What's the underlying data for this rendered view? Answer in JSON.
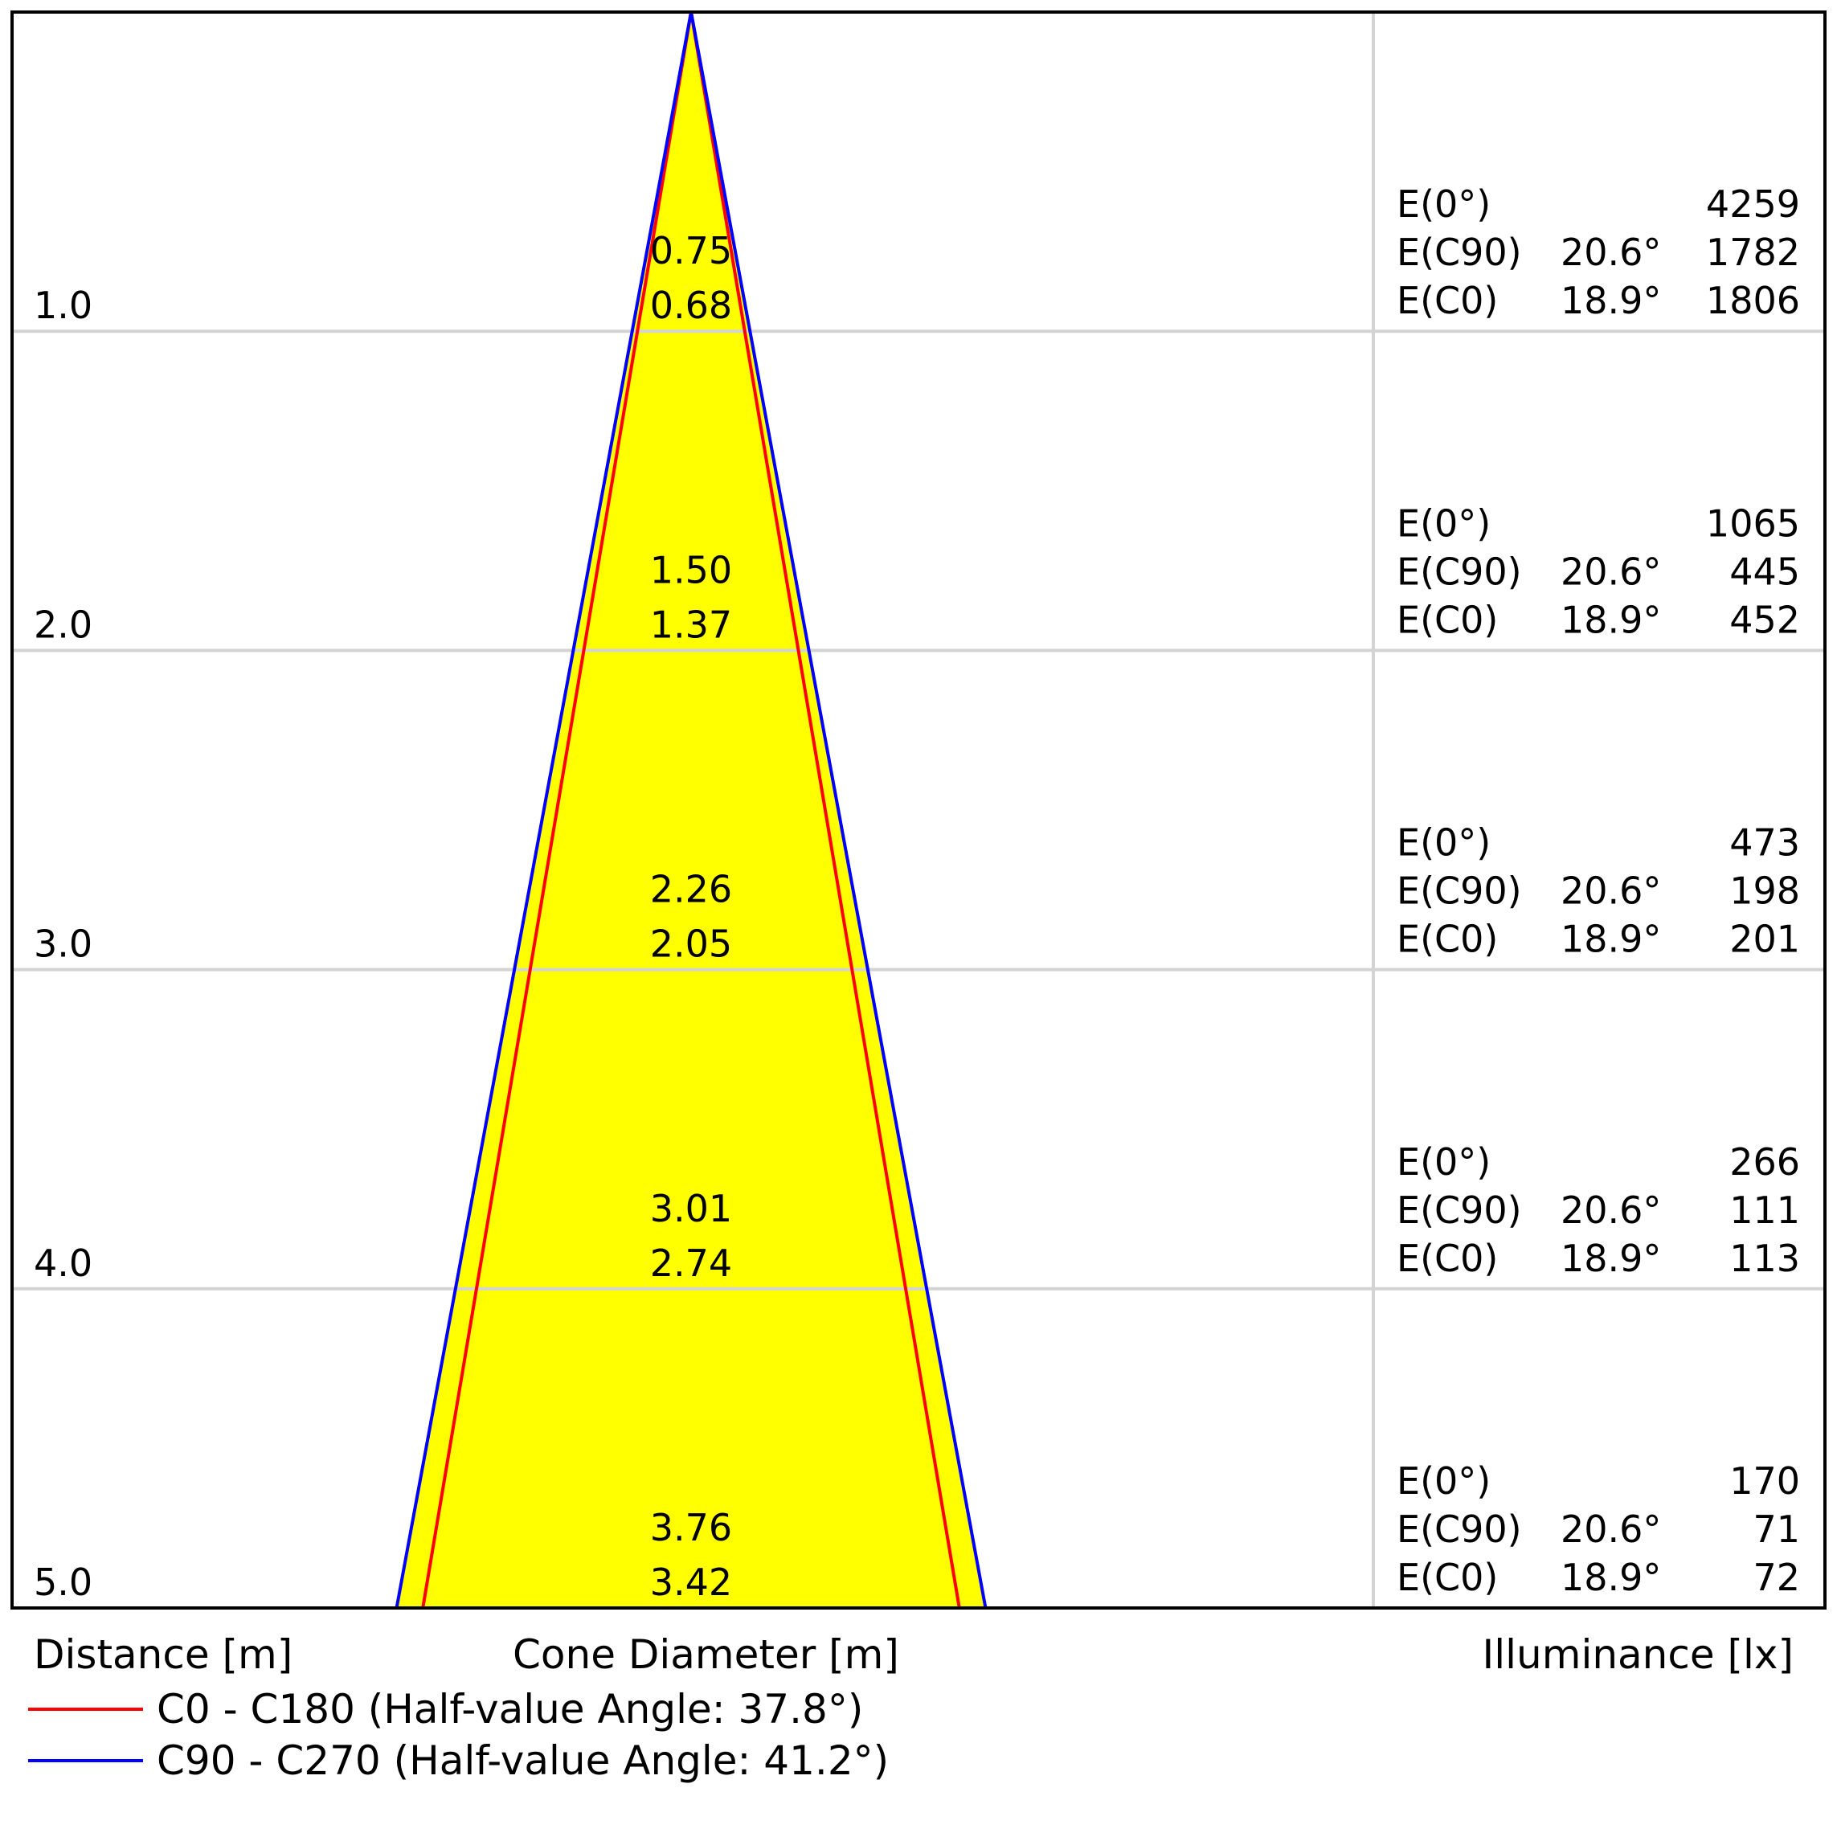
{
  "chart_data": {
    "type": "cone-diagram",
    "xlabel_distance": "Distance [m]",
    "xlabel_cone": "Cone Diameter [m]",
    "xlabel_illuminance": "Illuminance [lx]",
    "rows": [
      {
        "distance": "1.0",
        "d_c90": "0.75",
        "d_c0": "0.68",
        "e0_label": "E(0°)",
        "e0": "4259",
        "ec90_label": "E(C90)",
        "ec90_angle": "20.6°",
        "ec90": "1782",
        "ec0_label": "E(C0)",
        "ec0_angle": "18.9°",
        "ec0": "1806"
      },
      {
        "distance": "2.0",
        "d_c90": "1.50",
        "d_c0": "1.37",
        "e0_label": "E(0°)",
        "e0": "1065",
        "ec90_label": "E(C90)",
        "ec90_angle": "20.6°",
        "ec90": "445",
        "ec0_label": "E(C0)",
        "ec0_angle": "18.9°",
        "ec0": "452"
      },
      {
        "distance": "3.0",
        "d_c90": "2.26",
        "d_c0": "2.05",
        "e0_label": "E(0°)",
        "e0": "473",
        "ec90_label": "E(C90)",
        "ec90_angle": "20.6°",
        "ec90": "198",
        "ec0_label": "E(C0)",
        "ec0_angle": "18.9°",
        "ec0": "201"
      },
      {
        "distance": "4.0",
        "d_c90": "3.01",
        "d_c0": "2.74",
        "e0_label": "E(0°)",
        "e0": "266",
        "ec90_label": "E(C90)",
        "ec90_angle": "20.6°",
        "ec90": "111",
        "ec0_label": "E(C0)",
        "ec0_angle": "18.9°",
        "ec0": "113"
      },
      {
        "distance": "5.0",
        "d_c90": "3.76",
        "d_c0": "3.42",
        "e0_label": "E(0°)",
        "e0": "170",
        "ec90_label": "E(C90)",
        "ec90_angle": "20.6°",
        "ec90": "71",
        "ec0_label": "E(C0)",
        "ec0_angle": "18.9°",
        "ec0": "72"
      }
    ],
    "series": [
      {
        "name": "C0 - C180 (Half-value Angle: 37.8°)",
        "half_angle_deg": 37.8,
        "color": "#ff0000"
      },
      {
        "name": "C90 - C270 (Half-value Angle: 41.2°)",
        "half_angle_deg": 41.2,
        "color": "#0000ff"
      }
    ],
    "fill_color": "#ffff00",
    "grid_color": "#d3d3d3",
    "max_distance": 5.0
  }
}
